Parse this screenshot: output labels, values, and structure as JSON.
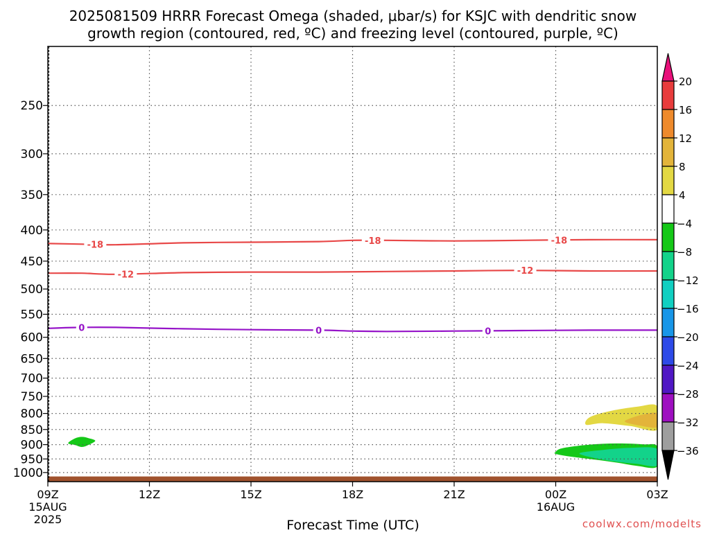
{
  "chart_data": {
    "type": "area",
    "title_lines": [
      "2025081509 HRRR Forecast Omega (shaded, μbar/s) for KSJC with dendritic snow",
      "growth region (contoured, red, ºC) and freezing level (contoured, purple, ºC)"
    ],
    "xlabel": "Forecast Time (UTC)",
    "ylabel": "",
    "x_ticks": [
      {
        "hour": 0,
        "label": "09Z",
        "sub": [
          "15AUG",
          "2025"
        ]
      },
      {
        "hour": 3,
        "label": "12Z",
        "sub": []
      },
      {
        "hour": 6,
        "label": "15Z",
        "sub": []
      },
      {
        "hour": 9,
        "label": "18Z",
        "sub": []
      },
      {
        "hour": 12,
        "label": "21Z",
        "sub": []
      },
      {
        "hour": 15,
        "label": "00Z",
        "sub": [
          "16AUG"
        ]
      },
      {
        "hour": 18,
        "label": "03Z",
        "sub": []
      }
    ],
    "xlim_hours": [
      0,
      18
    ],
    "y_ticks": [
      250,
      300,
      350,
      400,
      450,
      500,
      550,
      600,
      650,
      700,
      750,
      800,
      850,
      900,
      950,
      1000
    ],
    "ylim_hpa": [
      200,
      1035
    ],
    "y_scale": "log-pressure",
    "grid": true,
    "surface_pressure_hpa": 1015,
    "colorbar": {
      "labels": [
        "20",
        "16",
        "12",
        "8",
        "4",
        "-4",
        "-8",
        "-12",
        "-16",
        "-20",
        "-24",
        "-28",
        "-32",
        "-36"
      ],
      "colors": [
        "#e8107a",
        "#e83c3c",
        "#ee8a2c",
        "#e3b43a",
        "#e3d843",
        "#ffffff",
        "#15c818",
        "#13d38a",
        "#11cfc1",
        "#1896e8",
        "#2d4ae8",
        "#5018c4",
        "#9e10c0",
        "#9e9e9e",
        "#000000"
      ]
    },
    "contours": {
      "dgz_color": "#e84848",
      "freezing_color": "#9513c8",
      "lines": [
        {
          "name": "-18",
          "kind": "dgz",
          "points": [
            [
              0,
              421
            ],
            [
              1,
              422
            ],
            [
              2,
              423
            ],
            [
              4,
              420
            ],
            [
              6,
              419
            ],
            [
              8,
              418
            ],
            [
              9,
              416
            ],
            [
              10,
              416
            ],
            [
              12,
              417
            ],
            [
              14,
              416
            ],
            [
              16,
              415
            ],
            [
              18,
              415
            ]
          ],
          "label_hours": [
            1.4,
            9.6,
            15.1
          ]
        },
        {
          "name": "-12",
          "kind": "dgz",
          "points": [
            [
              0,
              471
            ],
            [
              1,
              471
            ],
            [
              2,
              473
            ],
            [
              4,
              470
            ],
            [
              6,
              469
            ],
            [
              8,
              469
            ],
            [
              10,
              468
            ],
            [
              12,
              467
            ],
            [
              14,
              466
            ],
            [
              16,
              467
            ],
            [
              18,
              467
            ]
          ],
          "label_hours": [
            2.3,
            14.1
          ]
        },
        {
          "name": "0",
          "kind": "freezing",
          "points": [
            [
              0,
              580
            ],
            [
              1,
              578
            ],
            [
              2,
              578
            ],
            [
              4,
              581
            ],
            [
              6,
              583
            ],
            [
              8,
              584
            ],
            [
              9,
              586
            ],
            [
              10,
              587
            ],
            [
              12,
              586
            ],
            [
              14,
              585
            ],
            [
              16,
              584
            ],
            [
              18,
              584
            ]
          ],
          "label_hours": [
            1.0,
            8.0,
            13.0
          ]
        }
      ]
    },
    "omega_regions": [
      {
        "value": -4,
        "color": "#15c818",
        "points": [
          [
            0.6,
            895
          ],
          [
            0.8,
            879
          ],
          [
            1.0,
            874
          ],
          [
            1.2,
            878
          ],
          [
            1.4,
            887
          ],
          [
            1.2,
            901
          ],
          [
            1.0,
            908
          ],
          [
            0.8,
            901
          ]
        ]
      },
      {
        "value": 4,
        "color": "#e3d843",
        "points": [
          [
            18,
            778
          ],
          [
            17.4,
            780
          ],
          [
            16.6,
            793
          ],
          [
            16.0,
            812
          ],
          [
            15.9,
            835
          ],
          [
            16.4,
            830
          ],
          [
            17.2,
            839
          ],
          [
            18,
            851
          ]
        ]
      },
      {
        "value": 8,
        "color": "#e3b43a",
        "points": [
          [
            18,
            800
          ],
          [
            17.6,
            803
          ],
          [
            17.2,
            815
          ],
          [
            17.05,
            826
          ],
          [
            17.5,
            838
          ],
          [
            18,
            842
          ]
        ]
      },
      {
        "value": -4,
        "color": "#15c818",
        "points": [
          [
            15.0,
            925
          ],
          [
            15.2,
            912
          ],
          [
            16.0,
            900
          ],
          [
            16.8,
            896
          ],
          [
            17.6,
            899
          ],
          [
            18,
            906
          ],
          [
            18,
            978
          ],
          [
            17.4,
            975
          ],
          [
            16.8,
            963
          ],
          [
            16.2,
            953
          ],
          [
            15.4,
            941
          ],
          [
            15.0,
            932
          ]
        ]
      },
      {
        "value": -8,
        "color": "#13d38a",
        "points": [
          [
            15.7,
            930
          ],
          [
            16.4,
            918
          ],
          [
            17.2,
            911
          ],
          [
            18,
            915
          ],
          [
            18,
            974
          ],
          [
            17.4,
            968
          ],
          [
            16.8,
            960
          ],
          [
            16.2,
            948
          ]
        ]
      }
    ]
  },
  "watermark": "coolwx.com/modelts"
}
